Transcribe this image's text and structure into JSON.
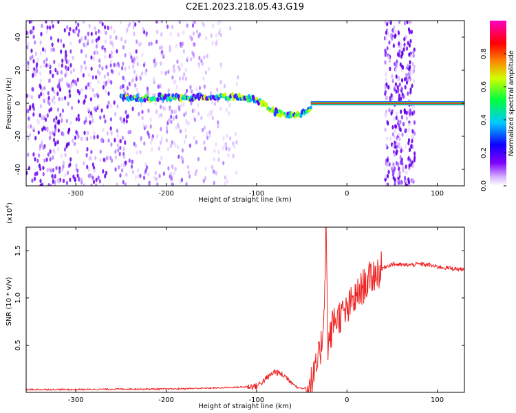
{
  "title": "C2E1.2023.218.05.43.G19",
  "chart_data": [
    {
      "type": "heatmap",
      "xlabel": "Height of straight line (km)",
      "ylabel": "Frequency (Hz)",
      "xlim": [
        -355,
        130
      ],
      "ylim": [
        -50,
        50
      ],
      "x_ticks": [
        -300,
        -200,
        -100,
        0,
        100
      ],
      "y_ticks": [
        -40,
        -20,
        0,
        20,
        40
      ],
      "colorbar": {
        "label": "Normalized spectral amplitude",
        "range": [
          0,
          1
        ],
        "ticks": [
          0.0,
          0.2,
          0.4,
          0.6,
          0.8
        ],
        "colors": [
          "#ffffff",
          "#d8b8ff",
          "#7f00ff",
          "#1000ff",
          "#00c8ff",
          "#00ff40",
          "#d0ff00",
          "#ff8000",
          "#ff0000",
          "#ff00c0"
        ]
      },
      "noise_region_x": [
        -355,
        -120
      ],
      "noise_band_x": [
        42,
        75
      ],
      "signal_track": {
        "x": [
          -250,
          -220,
          -200,
          -180,
          -160,
          -140,
          -120,
          -100,
          -90,
          -80,
          -70,
          -60,
          -50,
          -40,
          -35,
          -20,
          0,
          20,
          40,
          75,
          130
        ],
        "freq": [
          3,
          3,
          4,
          3,
          4,
          4,
          4,
          2,
          -2,
          -5,
          -7,
          -7,
          -6,
          -4,
          0,
          0,
          0,
          0,
          0,
          0,
          0
        ]
      },
      "carrier_x": [
        -40,
        130
      ]
    },
    {
      "type": "line",
      "xlabel": "Height of straight line (km)",
      "ylabel": "SNR (10 * v/v)",
      "scale_label": "(x10",
      "scale_exp": "4",
      "scale_close": ")",
      "xlim": [
        -355,
        130
      ],
      "ylim": [
        0,
        17500
      ],
      "x_ticks": [
        -300,
        -200,
        -100,
        0,
        100
      ],
      "y_ticks": [
        5000,
        10000,
        15000
      ],
      "y_tick_labels": [
        "0.5",
        "1.0",
        "1.5"
      ],
      "color": "#ee2222",
      "series": [
        {
          "x": [
            -355,
            -300,
            -250,
            -200,
            -150,
            -120,
            -100,
            -90,
            -80,
            -70,
            -62,
            -55,
            -48,
            -42,
            -38,
            -34,
            -30,
            -27,
            -25,
            -23,
            -22,
            -21,
            -18,
            -15,
            -10,
            -5,
            0,
            5,
            10,
            15,
            20,
            25,
            30,
            35,
            40,
            45,
            50,
            60,
            70,
            80,
            90,
            100,
            110,
            120,
            130
          ],
          "y": [
            300,
            300,
            350,
            350,
            450,
            550,
            650,
            1400,
            2200,
            1800,
            1200,
            500,
            400,
            700,
            1200,
            2500,
            4000,
            6000,
            10000,
            17500,
            11000,
            5000,
            6000,
            7500,
            8000,
            8200,
            8500,
            9500,
            10000,
            10800,
            11500,
            12000,
            12500,
            12800,
            13200,
            13400,
            13600,
            13500,
            13500,
            13600,
            13500,
            13300,
            13200,
            13100,
            13000
          ]
        }
      ]
    }
  ]
}
